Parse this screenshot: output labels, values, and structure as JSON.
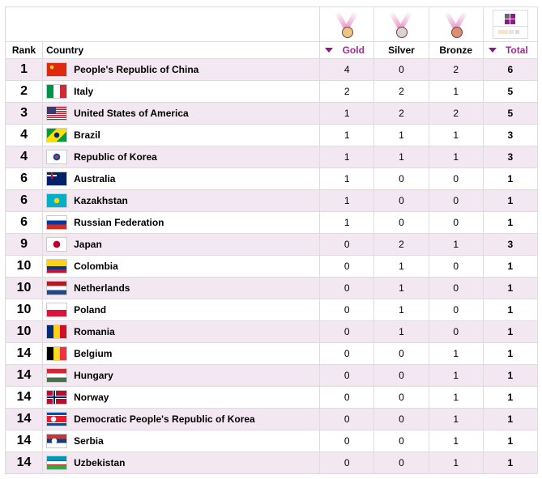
{
  "colors": {
    "accent": "#a02d96",
    "row_alt": "#f3e8f1",
    "gold": "#e8c880",
    "silver": "#d8d4d0",
    "bronze": "#d89070"
  },
  "header": {
    "rank": "Rank",
    "country": "Country",
    "gold": "Gold",
    "silver": "Silver",
    "bronze": "Bronze",
    "total": "Total",
    "sorted_columns": [
      "Gold",
      "Total"
    ],
    "icons": [
      "gold-medal-icon",
      "silver-medal-icon",
      "bronze-medal-icon",
      "total-grid-icon"
    ]
  },
  "rows": [
    {
      "rank": "1",
      "country": "People's Republic of China",
      "flag": "cn",
      "gold": "4",
      "silver": "0",
      "bronze": "2",
      "total": "6"
    },
    {
      "rank": "2",
      "country": "Italy",
      "flag": "it",
      "gold": "2",
      "silver": "2",
      "bronze": "1",
      "total": "5"
    },
    {
      "rank": "3",
      "country": "United States of America",
      "flag": "us",
      "gold": "1",
      "silver": "2",
      "bronze": "2",
      "total": "5"
    },
    {
      "rank": "4",
      "country": "Brazil",
      "flag": "br",
      "gold": "1",
      "silver": "1",
      "bronze": "1",
      "total": "3"
    },
    {
      "rank": "4",
      "country": "Republic of Korea",
      "flag": "kr",
      "gold": "1",
      "silver": "1",
      "bronze": "1",
      "total": "3"
    },
    {
      "rank": "6",
      "country": "Australia",
      "flag": "au",
      "gold": "1",
      "silver": "0",
      "bronze": "0",
      "total": "1"
    },
    {
      "rank": "6",
      "country": "Kazakhstan",
      "flag": "kz",
      "gold": "1",
      "silver": "0",
      "bronze": "0",
      "total": "1"
    },
    {
      "rank": "6",
      "country": "Russian Federation",
      "flag": "ru",
      "gold": "1",
      "silver": "0",
      "bronze": "0",
      "total": "1"
    },
    {
      "rank": "9",
      "country": "Japan",
      "flag": "jp",
      "gold": "0",
      "silver": "2",
      "bronze": "1",
      "total": "3"
    },
    {
      "rank": "10",
      "country": "Colombia",
      "flag": "co",
      "gold": "0",
      "silver": "1",
      "bronze": "0",
      "total": "1"
    },
    {
      "rank": "10",
      "country": "Netherlands",
      "flag": "nl",
      "gold": "0",
      "silver": "1",
      "bronze": "0",
      "total": "1"
    },
    {
      "rank": "10",
      "country": "Poland",
      "flag": "pl",
      "gold": "0",
      "silver": "1",
      "bronze": "0",
      "total": "1"
    },
    {
      "rank": "10",
      "country": "Romania",
      "flag": "ro",
      "gold": "0",
      "silver": "1",
      "bronze": "0",
      "total": "1"
    },
    {
      "rank": "14",
      "country": "Belgium",
      "flag": "be",
      "gold": "0",
      "silver": "0",
      "bronze": "1",
      "total": "1"
    },
    {
      "rank": "14",
      "country": "Hungary",
      "flag": "hu",
      "gold": "0",
      "silver": "0",
      "bronze": "1",
      "total": "1"
    },
    {
      "rank": "14",
      "country": "Norway",
      "flag": "no",
      "gold": "0",
      "silver": "0",
      "bronze": "1",
      "total": "1"
    },
    {
      "rank": "14",
      "country": "Democratic People's Republic of Korea",
      "flag": "kp",
      "gold": "0",
      "silver": "0",
      "bronze": "1",
      "total": "1"
    },
    {
      "rank": "14",
      "country": "Serbia",
      "flag": "rs",
      "gold": "0",
      "silver": "0",
      "bronze": "1",
      "total": "1"
    },
    {
      "rank": "14",
      "country": "Uzbekistan",
      "flag": "uz",
      "gold": "0",
      "silver": "0",
      "bronze": "1",
      "total": "1"
    }
  ]
}
